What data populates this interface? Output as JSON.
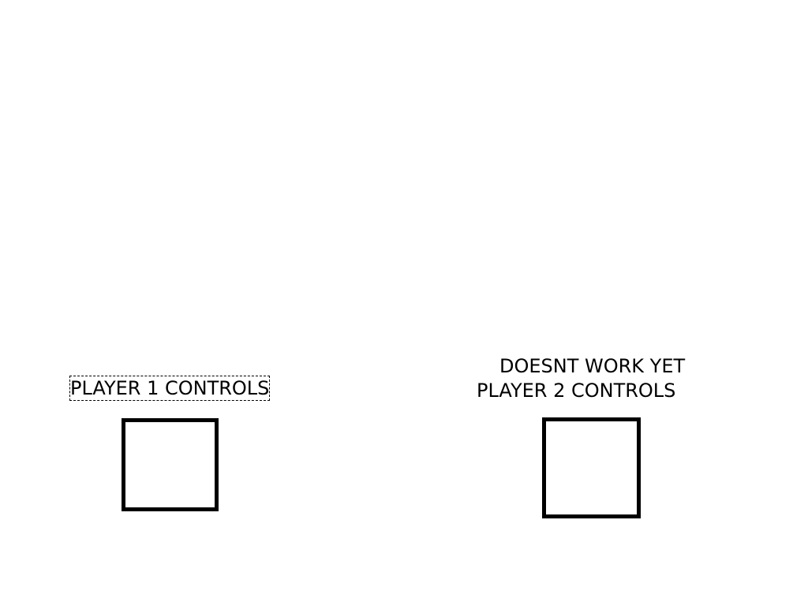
{
  "player1": {
    "label": "PLAYER 1 CONTROLS",
    "control_box": "button"
  },
  "player2": {
    "note": "DOESNT WORK YET",
    "label": "PLAYER 2 CONTROLS",
    "control_box": "button"
  },
  "colors": {
    "background": "#ffffff",
    "foreground": "#000000"
  }
}
